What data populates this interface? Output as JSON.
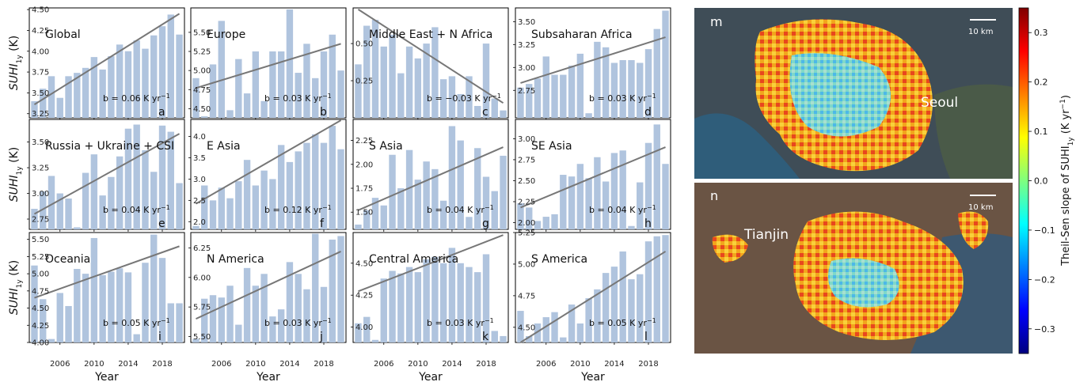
{
  "figure": {
    "ylabel": "SUHI",
    "ylabel_sub": "1y",
    "ylabel_unit": " (K)",
    "xlabel": "Year",
    "x_ticks": [
      "2006",
      "2010",
      "2014",
      "2018"
    ],
    "slope_prefix": "b = ",
    "slope_unit": " K yr",
    "slope_exp": "−1"
  },
  "chart_data": [
    {
      "type": "bar",
      "title": "Global",
      "letter": "a",
      "x": [
        2003,
        2004,
        2005,
        2006,
        2007,
        2008,
        2009,
        2010,
        2011,
        2012,
        2013,
        2014,
        2015,
        2016,
        2017,
        2018,
        2019,
        2020
      ],
      "values": [
        3.4,
        3.55,
        3.7,
        3.44,
        3.7,
        3.74,
        3.8,
        3.93,
        3.78,
        3.94,
        4.08,
        4.0,
        4.13,
        4.03,
        4.19,
        4.3,
        4.44,
        4.2
      ],
      "ylim": [
        3.2,
        4.52
      ],
      "yticks": [
        3.25,
        3.5,
        3.75,
        4.0,
        4.25,
        4.5
      ],
      "trend": [
        3.36,
        4.45
      ],
      "slope": "0.06"
    },
    {
      "type": "bar",
      "title": "Europe",
      "letter": "b",
      "x": [
        2003,
        2004,
        2005,
        2006,
        2007,
        2008,
        2009,
        2010,
        2011,
        2012,
        2013,
        2014,
        2015,
        2016,
        2017,
        2018,
        2019,
        2020
      ],
      "values": [
        4.9,
        4.4,
        5.08,
        5.65,
        4.48,
        5.15,
        4.7,
        5.25,
        4.6,
        5.25,
        5.25,
        5.8,
        4.97,
        5.35,
        4.9,
        5.25,
        5.47,
        5.0
      ],
      "ylim": [
        4.38,
        5.82
      ],
      "yticks": [
        4.5,
        4.75,
        5.0,
        5.25,
        5.5
      ],
      "trend": [
        4.77,
        5.35
      ],
      "slope": "0.03"
    },
    {
      "type": "bar",
      "title": "Middle East + N Africa",
      "letter": "c",
      "x": [
        2003,
        2004,
        2005,
        2006,
        2007,
        2008,
        2009,
        2010,
        2011,
        2012,
        2013,
        2014,
        2015,
        2016,
        2017,
        2018,
        2019,
        2020
      ],
      "values": [
        0.36,
        0.62,
        0.66,
        0.48,
        0.56,
        0.3,
        0.48,
        0.4,
        0.5,
        0.61,
        0.26,
        0.28,
        0.16,
        0.28,
        0.08,
        0.5,
        0.13,
        0.05
      ],
      "ylim": [
        0.0,
        0.74
      ],
      "yticks": [
        0.25,
        0.5
      ],
      "trend": [
        0.73,
        0.1
      ],
      "slope": "−0.03"
    },
    {
      "type": "bar",
      "title": "Subsaharan Africa",
      "letter": "d",
      "x": [
        2003,
        2004,
        2005,
        2006,
        2007,
        2008,
        2009,
        2010,
        2011,
        2012,
        2013,
        2014,
        2015,
        2016,
        2017,
        2018,
        2019,
        2020
      ],
      "values": [
        2.78,
        2.82,
        2.88,
        3.12,
        2.92,
        2.92,
        3.02,
        3.15,
        2.5,
        3.28,
        3.22,
        3.05,
        3.08,
        3.08,
        3.05,
        3.2,
        3.42,
        3.62
      ],
      "ylim": [
        2.45,
        3.65
      ],
      "yticks": [
        2.75,
        3.0,
        3.25,
        3.5
      ],
      "trend": [
        2.83,
        3.33
      ],
      "slope": "0.03"
    },
    {
      "type": "bar",
      "title": "Russia + Ukraine + CSI",
      "letter": "e",
      "x": [
        2003,
        2004,
        2005,
        2006,
        2007,
        2008,
        2009,
        2010,
        2011,
        2012,
        2013,
        2014,
        2015,
        2016,
        2017,
        2018,
        2019,
        2020
      ],
      "values": [
        2.85,
        3.02,
        3.17,
        3.0,
        2.95,
        2.67,
        3.2,
        3.38,
        2.98,
        3.16,
        3.36,
        3.63,
        3.67,
        3.42,
        3.21,
        3.66,
        3.6,
        3.1
      ],
      "ylim": [
        2.65,
        3.72
      ],
      "yticks": [
        2.75,
        3.0,
        3.25,
        3.5
      ],
      "trend": [
        2.8,
        3.58
      ],
      "slope": "0.04"
    },
    {
      "type": "bar",
      "title": "E Asia",
      "letter": "f",
      "x": [
        2003,
        2004,
        2005,
        2006,
        2007,
        2008,
        2009,
        2010,
        2011,
        2012,
        2013,
        2014,
        2015,
        2016,
        2017,
        2018,
        2019,
        2020
      ],
      "values": [
        1.9,
        2.85,
        2.5,
        2.8,
        2.55,
        2.95,
        3.45,
        2.85,
        3.2,
        3.0,
        3.8,
        3.4,
        3.65,
        3.85,
        4.05,
        3.85,
        4.25,
        3.7
      ],
      "ylim": [
        1.82,
        4.4
      ],
      "yticks": [
        2.0,
        2.5,
        3.0,
        3.5,
        4.0
      ],
      "trend": [
        2.42,
        4.38
      ],
      "slope": "0.12"
    },
    {
      "type": "bar",
      "title": "S Asia",
      "letter": "g",
      "x": [
        2003,
        2004,
        2005,
        2006,
        2007,
        2008,
        2009,
        2010,
        2011,
        2012,
        2013,
        2014,
        2015,
        2016,
        2017,
        2018,
        2019,
        2020
      ],
      "values": [
        1.37,
        1.52,
        1.65,
        1.57,
        2.1,
        1.75,
        2.15,
        1.84,
        2.03,
        1.95,
        1.62,
        2.4,
        2.25,
        1.45,
        2.17,
        1.87,
        1.72,
        2.09
      ],
      "ylim": [
        1.32,
        2.47
      ],
      "yticks": [
        1.5,
        1.75,
        2.0,
        2.25
      ],
      "trend": [
        1.52,
        2.18
      ],
      "slope": "0.04"
    },
    {
      "type": "bar",
      "title": "SE Asia",
      "letter": "h",
      "x": [
        2003,
        2004,
        2005,
        2006,
        2007,
        2008,
        2009,
        2010,
        2011,
        2012,
        2013,
        2014,
        2015,
        2016,
        2017,
        2018,
        2019,
        2020
      ],
      "values": [
        2.23,
        2.18,
        2.02,
        2.07,
        2.1,
        2.57,
        2.55,
        2.7,
        2.53,
        2.78,
        2.49,
        2.83,
        2.86,
        1.96,
        2.48,
        2.95,
        3.17,
        2.7
      ],
      "ylim": [
        1.92,
        3.23
      ],
      "yticks": [
        2.0,
        2.25,
        2.5,
        2.75,
        3.0
      ],
      "trend": [
        2.18,
        2.9
      ],
      "slope": "0.04"
    },
    {
      "type": "bar",
      "title": "Oceania",
      "letter": "i",
      "x": [
        2003,
        2004,
        2005,
        2006,
        2007,
        2008,
        2009,
        2010,
        2011,
        2012,
        2013,
        2014,
        2015,
        2016,
        2017,
        2018,
        2019,
        2020
      ],
      "values": [
        5.12,
        4.63,
        4.05,
        4.72,
        4.53,
        5.07,
        5.0,
        5.52,
        4.98,
        5.03,
        5.08,
        5.02,
        4.12,
        5.16,
        5.57,
        5.23,
        4.57,
        4.57
      ],
      "ylim": [
        4.0,
        5.6
      ],
      "yticks": [
        4.0,
        4.25,
        4.5,
        4.75,
        5.0,
        5.25,
        5.5
      ],
      "trend": [
        4.65,
        5.4
      ],
      "slope": "0.05"
    },
    {
      "type": "bar",
      "title": "N America",
      "letter": "j",
      "x": [
        2003,
        2004,
        2005,
        2006,
        2007,
        2008,
        2009,
        2010,
        2011,
        2012,
        2013,
        2014,
        2015,
        2016,
        2017,
        2018,
        2019,
        2020
      ],
      "values": [
        5.48,
        5.82,
        5.85,
        5.83,
        5.93,
        5.6,
        6.08,
        5.93,
        6.03,
        5.67,
        5.73,
        6.13,
        6.03,
        5.9,
        6.37,
        5.92,
        6.32,
        6.35
      ],
      "ylim": [
        5.45,
        6.38
      ],
      "yticks": [
        5.5,
        5.75,
        6.0,
        6.25
      ],
      "trend": [
        5.65,
        6.22
      ],
      "slope": "0.03"
    },
    {
      "type": "bar",
      "title": "Central America",
      "letter": "k",
      "x": [
        2003,
        2004,
        2005,
        2006,
        2007,
        2008,
        2009,
        2010,
        2011,
        2012,
        2013,
        2014,
        2015,
        2016,
        2017,
        2018,
        2019,
        2020
      ],
      "values": [
        4.03,
        4.08,
        3.9,
        4.38,
        4.44,
        4.42,
        4.47,
        4.43,
        4.53,
        4.55,
        4.5,
        4.62,
        4.5,
        4.47,
        4.43,
        4.57,
        3.97,
        3.93
      ],
      "ylim": [
        3.88,
        4.74
      ],
      "yticks": [
        4.0,
        4.25,
        4.5
      ],
      "trend": [
        4.28,
        4.72
      ],
      "slope": "0.03"
    },
    {
      "type": "bar",
      "title": "S America",
      "letter": "l",
      "x": [
        2003,
        2004,
        2005,
        2006,
        2007,
        2008,
        2009,
        2010,
        2011,
        2012,
        2013,
        2014,
        2015,
        2016,
        2017,
        2018,
        2019,
        2020
      ],
      "values": [
        4.63,
        4.43,
        4.53,
        4.58,
        4.62,
        4.42,
        4.68,
        4.53,
        4.73,
        4.8,
        4.93,
        4.98,
        5.1,
        4.88,
        4.92,
        5.18,
        5.22,
        5.23
      ],
      "ylim": [
        4.38,
        5.25
      ],
      "yticks": [
        4.5,
        4.75,
        5.0,
        5.25
      ],
      "trend": [
        4.38,
        5.1
      ],
      "slope": "0.05"
    }
  ],
  "maps": {
    "seoul": {
      "letter": "m",
      "city": "Seoul",
      "scale": "10 km"
    },
    "tianjin": {
      "letter": "n",
      "city": "Tianjin",
      "scale": "10 km"
    }
  },
  "colorbar": {
    "label": "Theil-Sen slope of SUHI",
    "label_sub": "1y",
    "label_unit": " (K yr",
    "label_exp": "−1",
    "label_close": ")",
    "range": [
      -0.35,
      0.35
    ],
    "ticks": [
      "0.3",
      "0.2",
      "0.1",
      "0.0",
      "−0.1",
      "−0.2",
      "−0.3"
    ],
    "tick_values": [
      0.3,
      0.2,
      0.1,
      0.0,
      -0.1,
      -0.2,
      -0.3
    ],
    "colormap": "jet"
  },
  "colors": {
    "bar": "#b0c4de",
    "trend": "#777777",
    "map_base": "#3a4a5a"
  }
}
